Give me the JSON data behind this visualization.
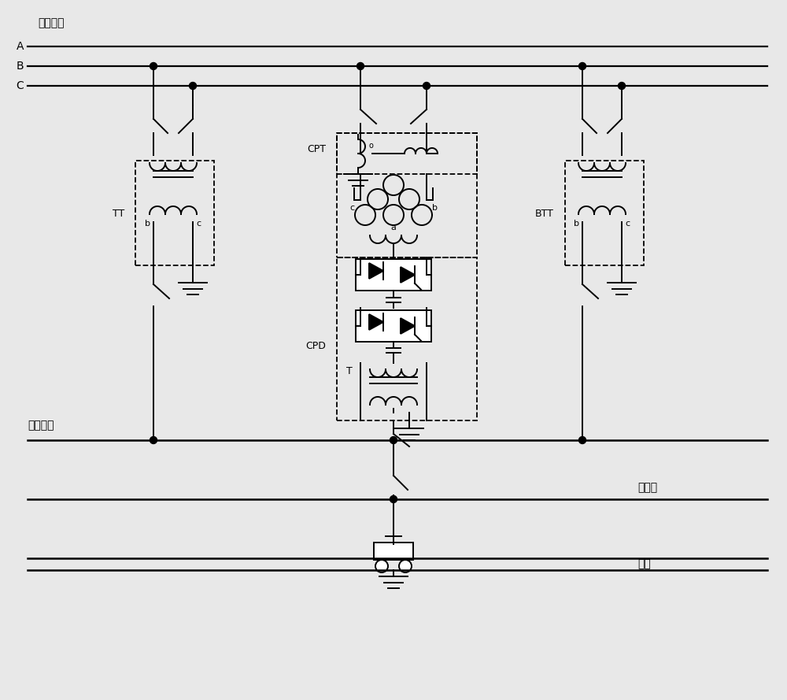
{
  "bg_color": "#e8e8e8",
  "lc": "#000000",
  "lw": 1.4,
  "figsize": [
    10.0,
    8.89
  ],
  "dpi": 100,
  "xlim": [
    0,
    10
  ],
  "ylim": [
    0,
    8.89
  ]
}
